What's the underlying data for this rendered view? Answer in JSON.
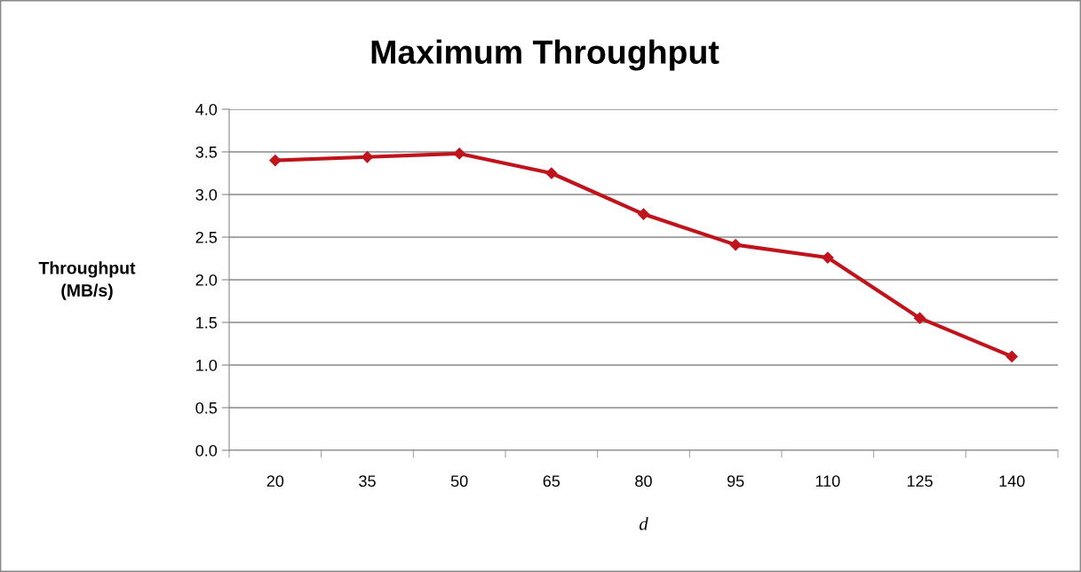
{
  "chart_data": {
    "type": "line",
    "title": "Maximum Throughput",
    "xlabel": "d",
    "ylabel": "Throughput\n(MB/s)",
    "categories": [
      "20",
      "35",
      "50",
      "65",
      "80",
      "95",
      "110",
      "125",
      "140"
    ],
    "series": [
      {
        "color": "#c0141c",
        "values": [
          3.4,
          3.44,
          3.48,
          3.25,
          2.77,
          2.41,
          2.26,
          1.55,
          1.1
        ]
      }
    ],
    "ylim": [
      0,
      4
    ],
    "yticks": [
      {
        "value": 0,
        "label": "0.0"
      },
      {
        "value": 0.5,
        "label": "0.5"
      },
      {
        "value": 1,
        "label": "1.0"
      },
      {
        "value": 1.5,
        "label": "1.5"
      },
      {
        "value": 2,
        "label": "2.0"
      },
      {
        "value": 2.5,
        "label": "2.5"
      },
      {
        "value": 3,
        "label": "3.0"
      },
      {
        "value": 3.5,
        "label": "3.5"
      },
      {
        "value": 4,
        "label": "4.0"
      }
    ],
    "grid": "y",
    "marker": "diamond",
    "line_style": "solid"
  }
}
